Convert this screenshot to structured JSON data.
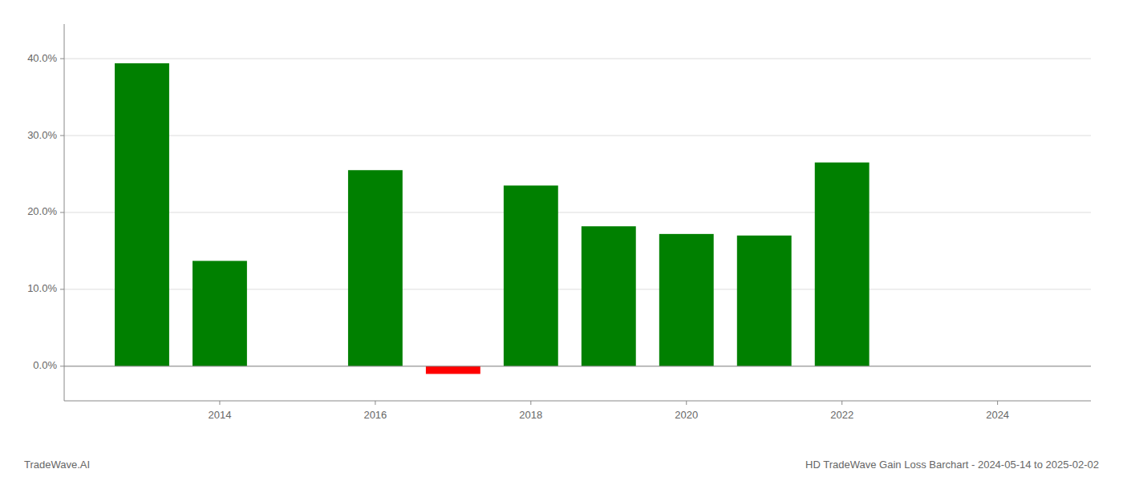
{
  "chart_data": {
    "type": "bar",
    "title": "HD TradeWave Gain Loss Barchart - 2024-05-14 to 2025-02-02",
    "annotations": [
      "TradeWave.AI"
    ],
    "x": [
      2013,
      2014,
      2016,
      2017,
      2018,
      2019,
      2020,
      2021,
      2022,
      2023
    ],
    "values": [
      0.394,
      0.137,
      0.255,
      -0.01,
      0.235,
      0.182,
      0.172,
      0.17,
      0.265,
      0.0
    ],
    "colors": [
      "#008000",
      "#008000",
      "#008000",
      "#ff0000",
      "#008000",
      "#008000",
      "#008000",
      "#008000",
      "#008000",
      "#008000"
    ],
    "xlim": [
      2012.0,
      2025.2
    ],
    "xticks": [
      2014,
      2016,
      2018,
      2020,
      2022,
      2024
    ],
    "ylim": [
      -0.045,
      0.445
    ],
    "yticks": [
      {
        "value": 0.0,
        "label": "0.0%"
      },
      {
        "value": 0.1,
        "label": "10.0%"
      },
      {
        "value": 0.2,
        "label": "20.0%"
      },
      {
        "value": 0.3,
        "label": "30.0%"
      },
      {
        "value": 0.4,
        "label": "40.0%"
      }
    ],
    "grid": true
  }
}
